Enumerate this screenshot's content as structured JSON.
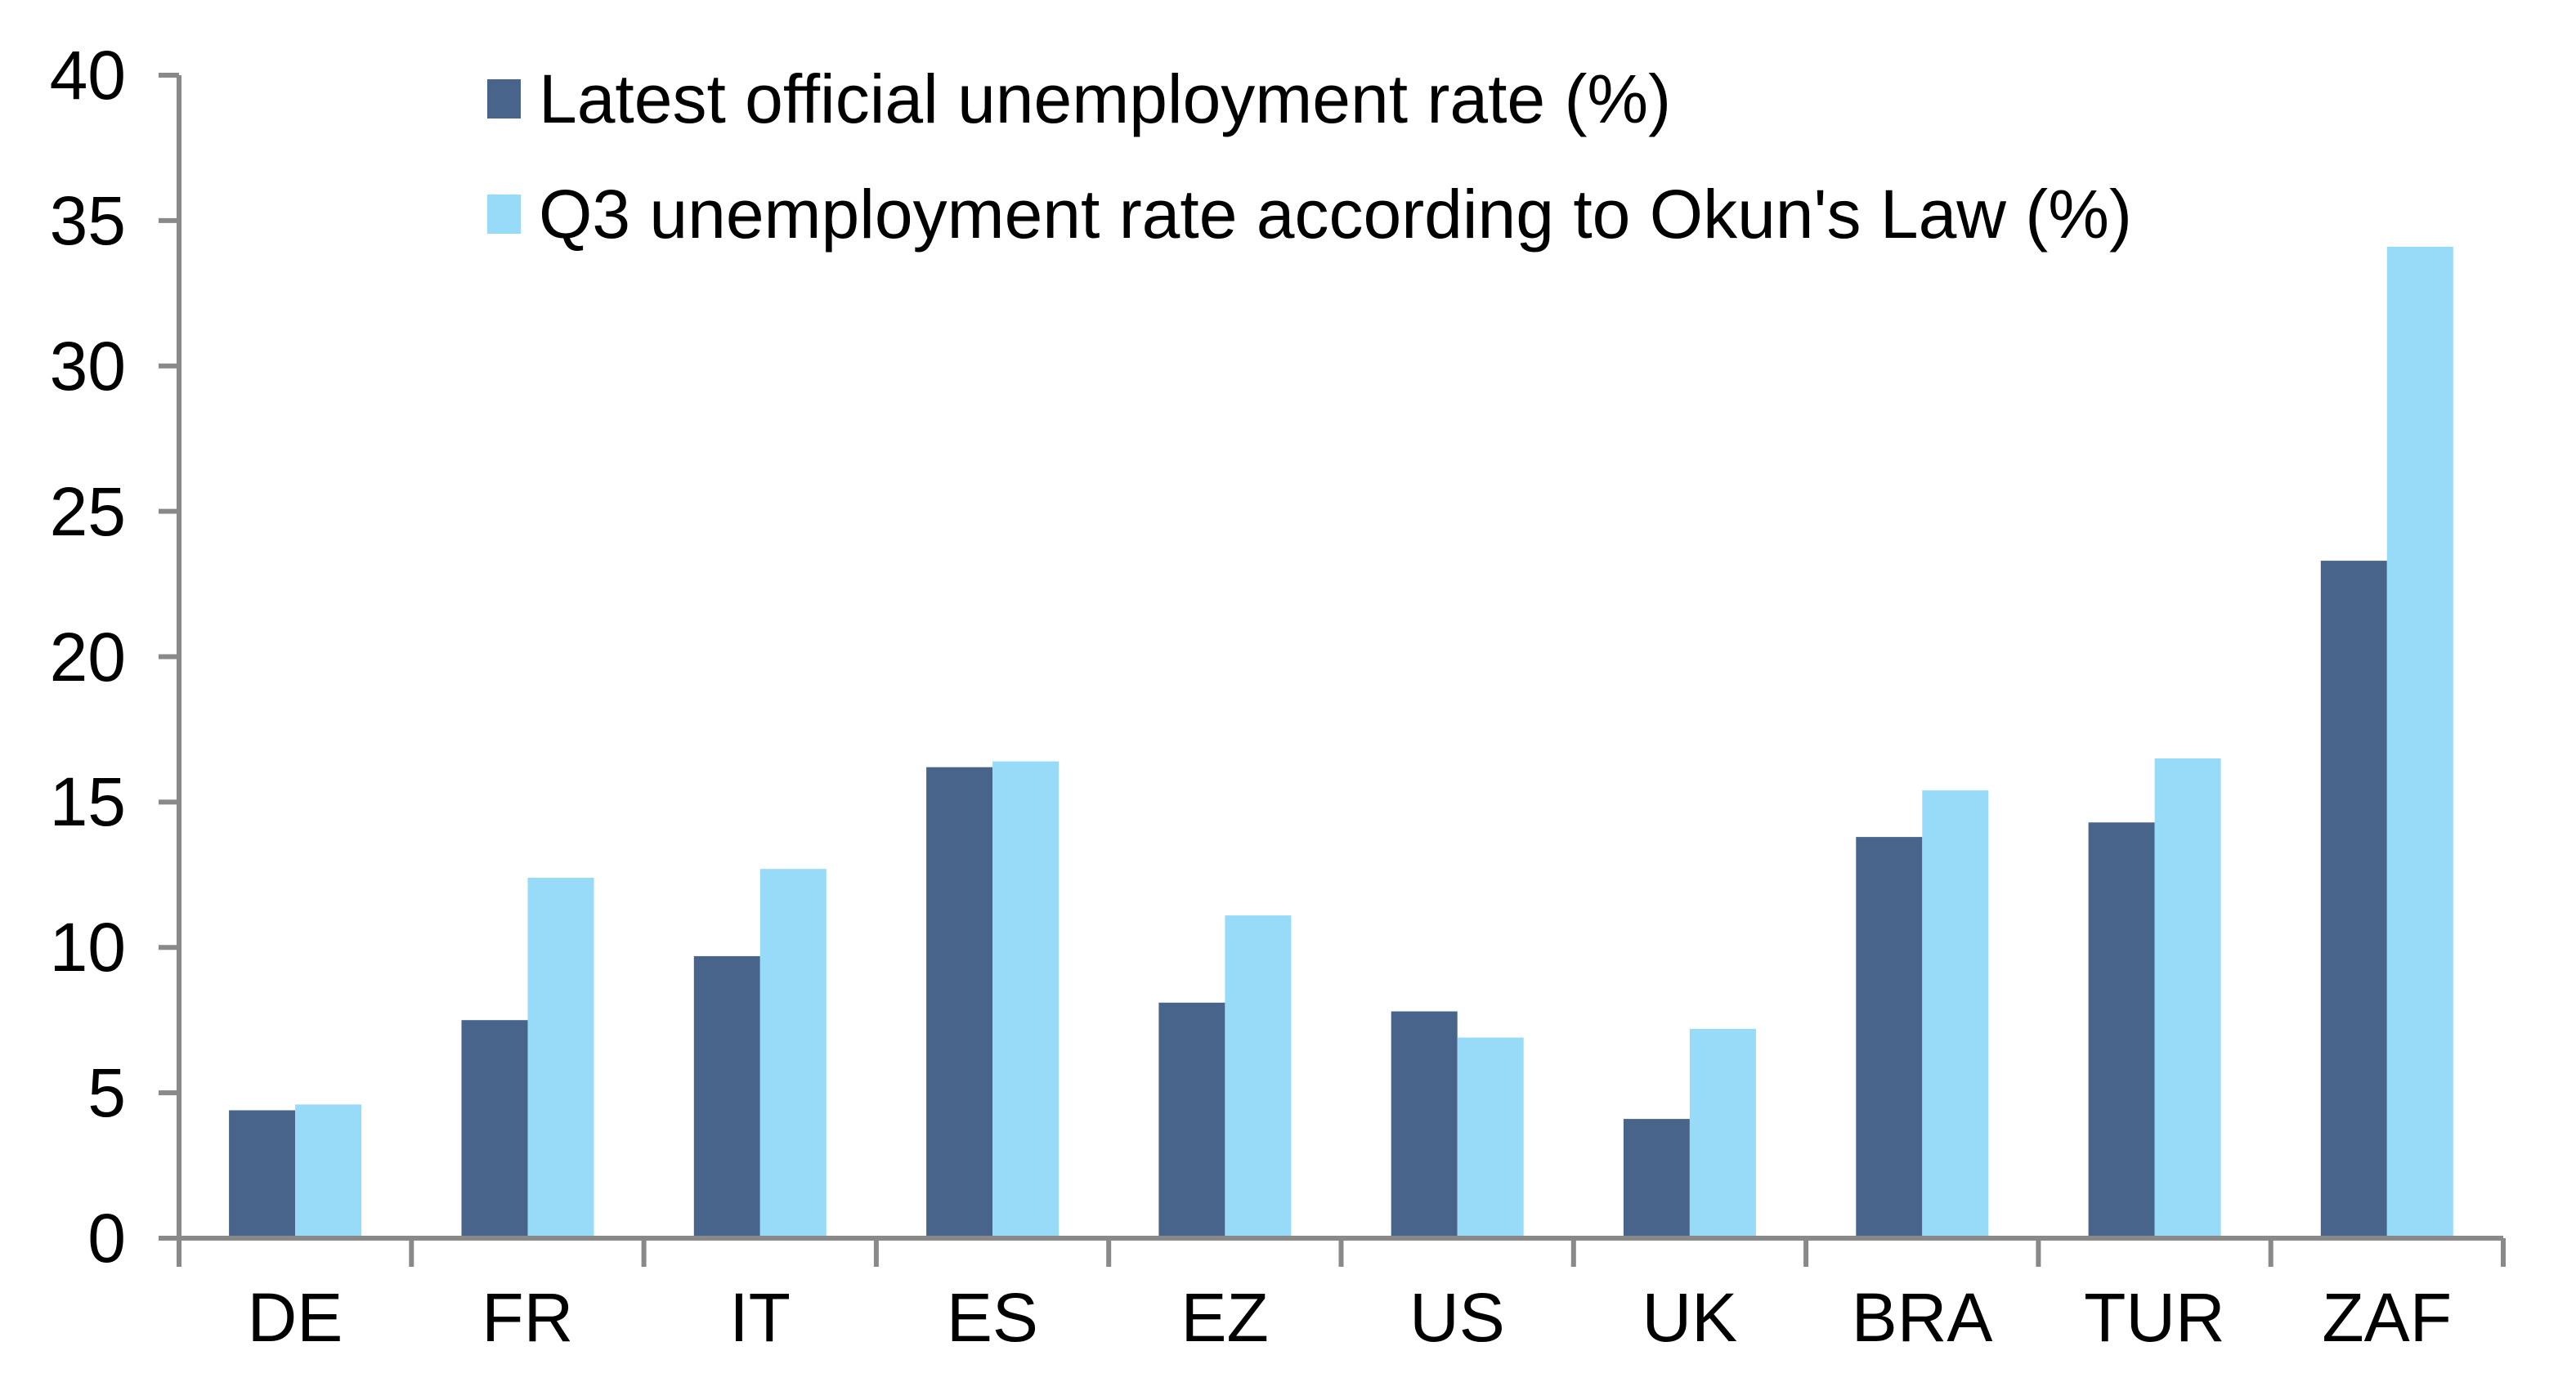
{
  "chart_data": {
    "type": "bar",
    "title": "",
    "xlabel": "",
    "ylabel": "",
    "ylim": [
      0,
      40
    ],
    "yticks": [
      "0",
      "5",
      "10",
      "15",
      "20",
      "25",
      "30",
      "35",
      "40"
    ],
    "grid": false,
    "legend_position": "top-center (inside plot)",
    "categories": [
      "DE",
      "FR",
      "IT",
      "ES",
      "EZ",
      "US",
      "UK",
      "BRA",
      "TUR",
      "ZAF"
    ],
    "series": [
      {
        "name": "Latest official unemployment rate (%)",
        "color": "#48648B",
        "values": [
          4.4,
          7.5,
          9.7,
          16.2,
          8.1,
          7.8,
          4.1,
          13.8,
          14.3,
          23.3
        ]
      },
      {
        "name": "Q3 unemployment rate according to Okun's Law (%)",
        "color": "#98DBF9",
        "values": [
          4.6,
          12.4,
          12.7,
          16.4,
          11.1,
          6.9,
          7.2,
          15.4,
          16.5,
          34.1
        ]
      }
    ]
  },
  "colors": {
    "axis": "#898989",
    "text": "#000000"
  }
}
